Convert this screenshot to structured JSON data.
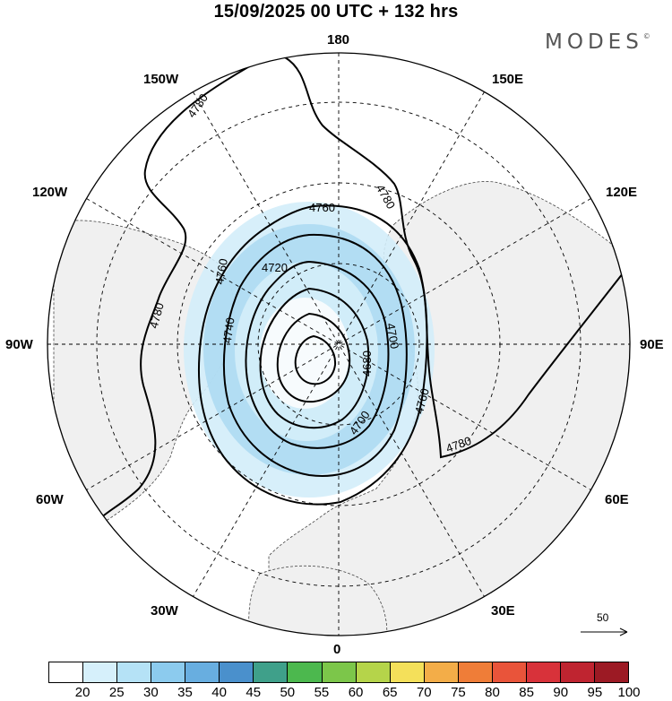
{
  "title": "15/09/2025  00 UTC  + 132 hrs",
  "brand": "MODES",
  "brand_mark": "©",
  "longitude_labels": [
    {
      "key": "lon_180",
      "text": "180"
    },
    {
      "key": "lon_150w",
      "text": "150W"
    },
    {
      "key": "lon_150e",
      "text": "150E"
    },
    {
      "key": "lon_120w",
      "text": "120W"
    },
    {
      "key": "lon_120e",
      "text": "120E"
    },
    {
      "key": "lon_90w",
      "text": "90W"
    },
    {
      "key": "lon_90e",
      "text": "90E"
    },
    {
      "key": "lon_60w",
      "text": "60W"
    },
    {
      "key": "lon_60e",
      "text": "60E"
    },
    {
      "key": "lon_30w",
      "text": "30W"
    },
    {
      "key": "lon_30e",
      "text": "30E"
    },
    {
      "key": "lon_0",
      "text": "0"
    }
  ],
  "labels": {
    "lon_180": "180",
    "lon_150w": "150W",
    "lon_150e": "150E",
    "lon_120w": "120W",
    "lon_120e": "120E",
    "lon_90w": "90W",
    "lon_90e": "90E",
    "lon_60w": "60W",
    "lon_60e": "60E",
    "lon_30w": "30W",
    "lon_30e": "30E",
    "lon_0": "0"
  },
  "contour_labels": [
    "4780",
    "4780",
    "4780",
    "4780",
    "4760",
    "4760",
    "4760",
    "4740",
    "4720",
    "4700",
    "4700",
    "4680"
  ],
  "wind_reference": {
    "value": "50"
  },
  "colorbar": {
    "ticks": [
      "20",
      "25",
      "30",
      "35",
      "40",
      "45",
      "50",
      "55",
      "60",
      "65",
      "70",
      "75",
      "80",
      "85",
      "90",
      "95",
      "100"
    ],
    "colors": [
      "#ffffff",
      "#d6f0fb",
      "#b5e2f6",
      "#8ccbee",
      "#68aee0",
      "#4a90cc",
      "#3fa08a",
      "#4cb84e",
      "#7cc64a",
      "#b5d44a",
      "#f4e05a",
      "#f3ad48",
      "#ef7d38",
      "#e9543a",
      "#d8323a",
      "#bf2430",
      "#9c1a24"
    ]
  },
  "colors": {
    "ocean": "#ffffff",
    "land": "#f0f0f0",
    "wind_light": "#d3edf9",
    "wind_mid": "#a9d8f1",
    "wind_strong": "#84c2e8",
    "contour": "#000000"
  }
}
